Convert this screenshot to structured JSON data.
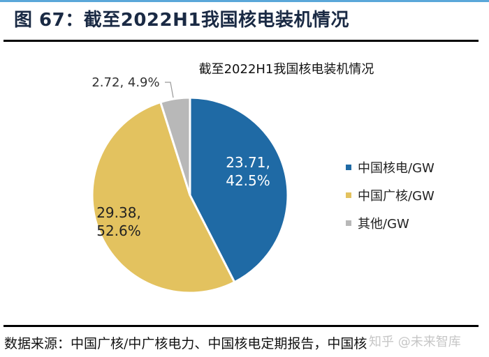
{
  "figure_title": "图 67：截至2022H1我国核电装机情况",
  "source": "数据来源：中国广核/中广核电力、中国核电定期报告，中国核",
  "watermark": "知乎 @未来智库",
  "chart_data": {
    "type": "pie",
    "title": "截至2022H1我国核电装机情况",
    "start_angle": "12 o'clock, clockwise",
    "legend_position": "right",
    "slices": [
      {
        "name": "中国核电/GW",
        "value": 23.71,
        "percent": 42.5,
        "label": "23.71,\n42.5%",
        "color": "#1f6aa5"
      },
      {
        "name": "中国广核/GW",
        "value": 29.38,
        "percent": 52.6,
        "label": "29.38,\n52.6%",
        "color": "#e3c25f"
      },
      {
        "name": "其他/GW",
        "value": 2.72,
        "percent": 4.9,
        "label": "2.72, 4.9%",
        "color": "#b8b8b8"
      }
    ]
  }
}
